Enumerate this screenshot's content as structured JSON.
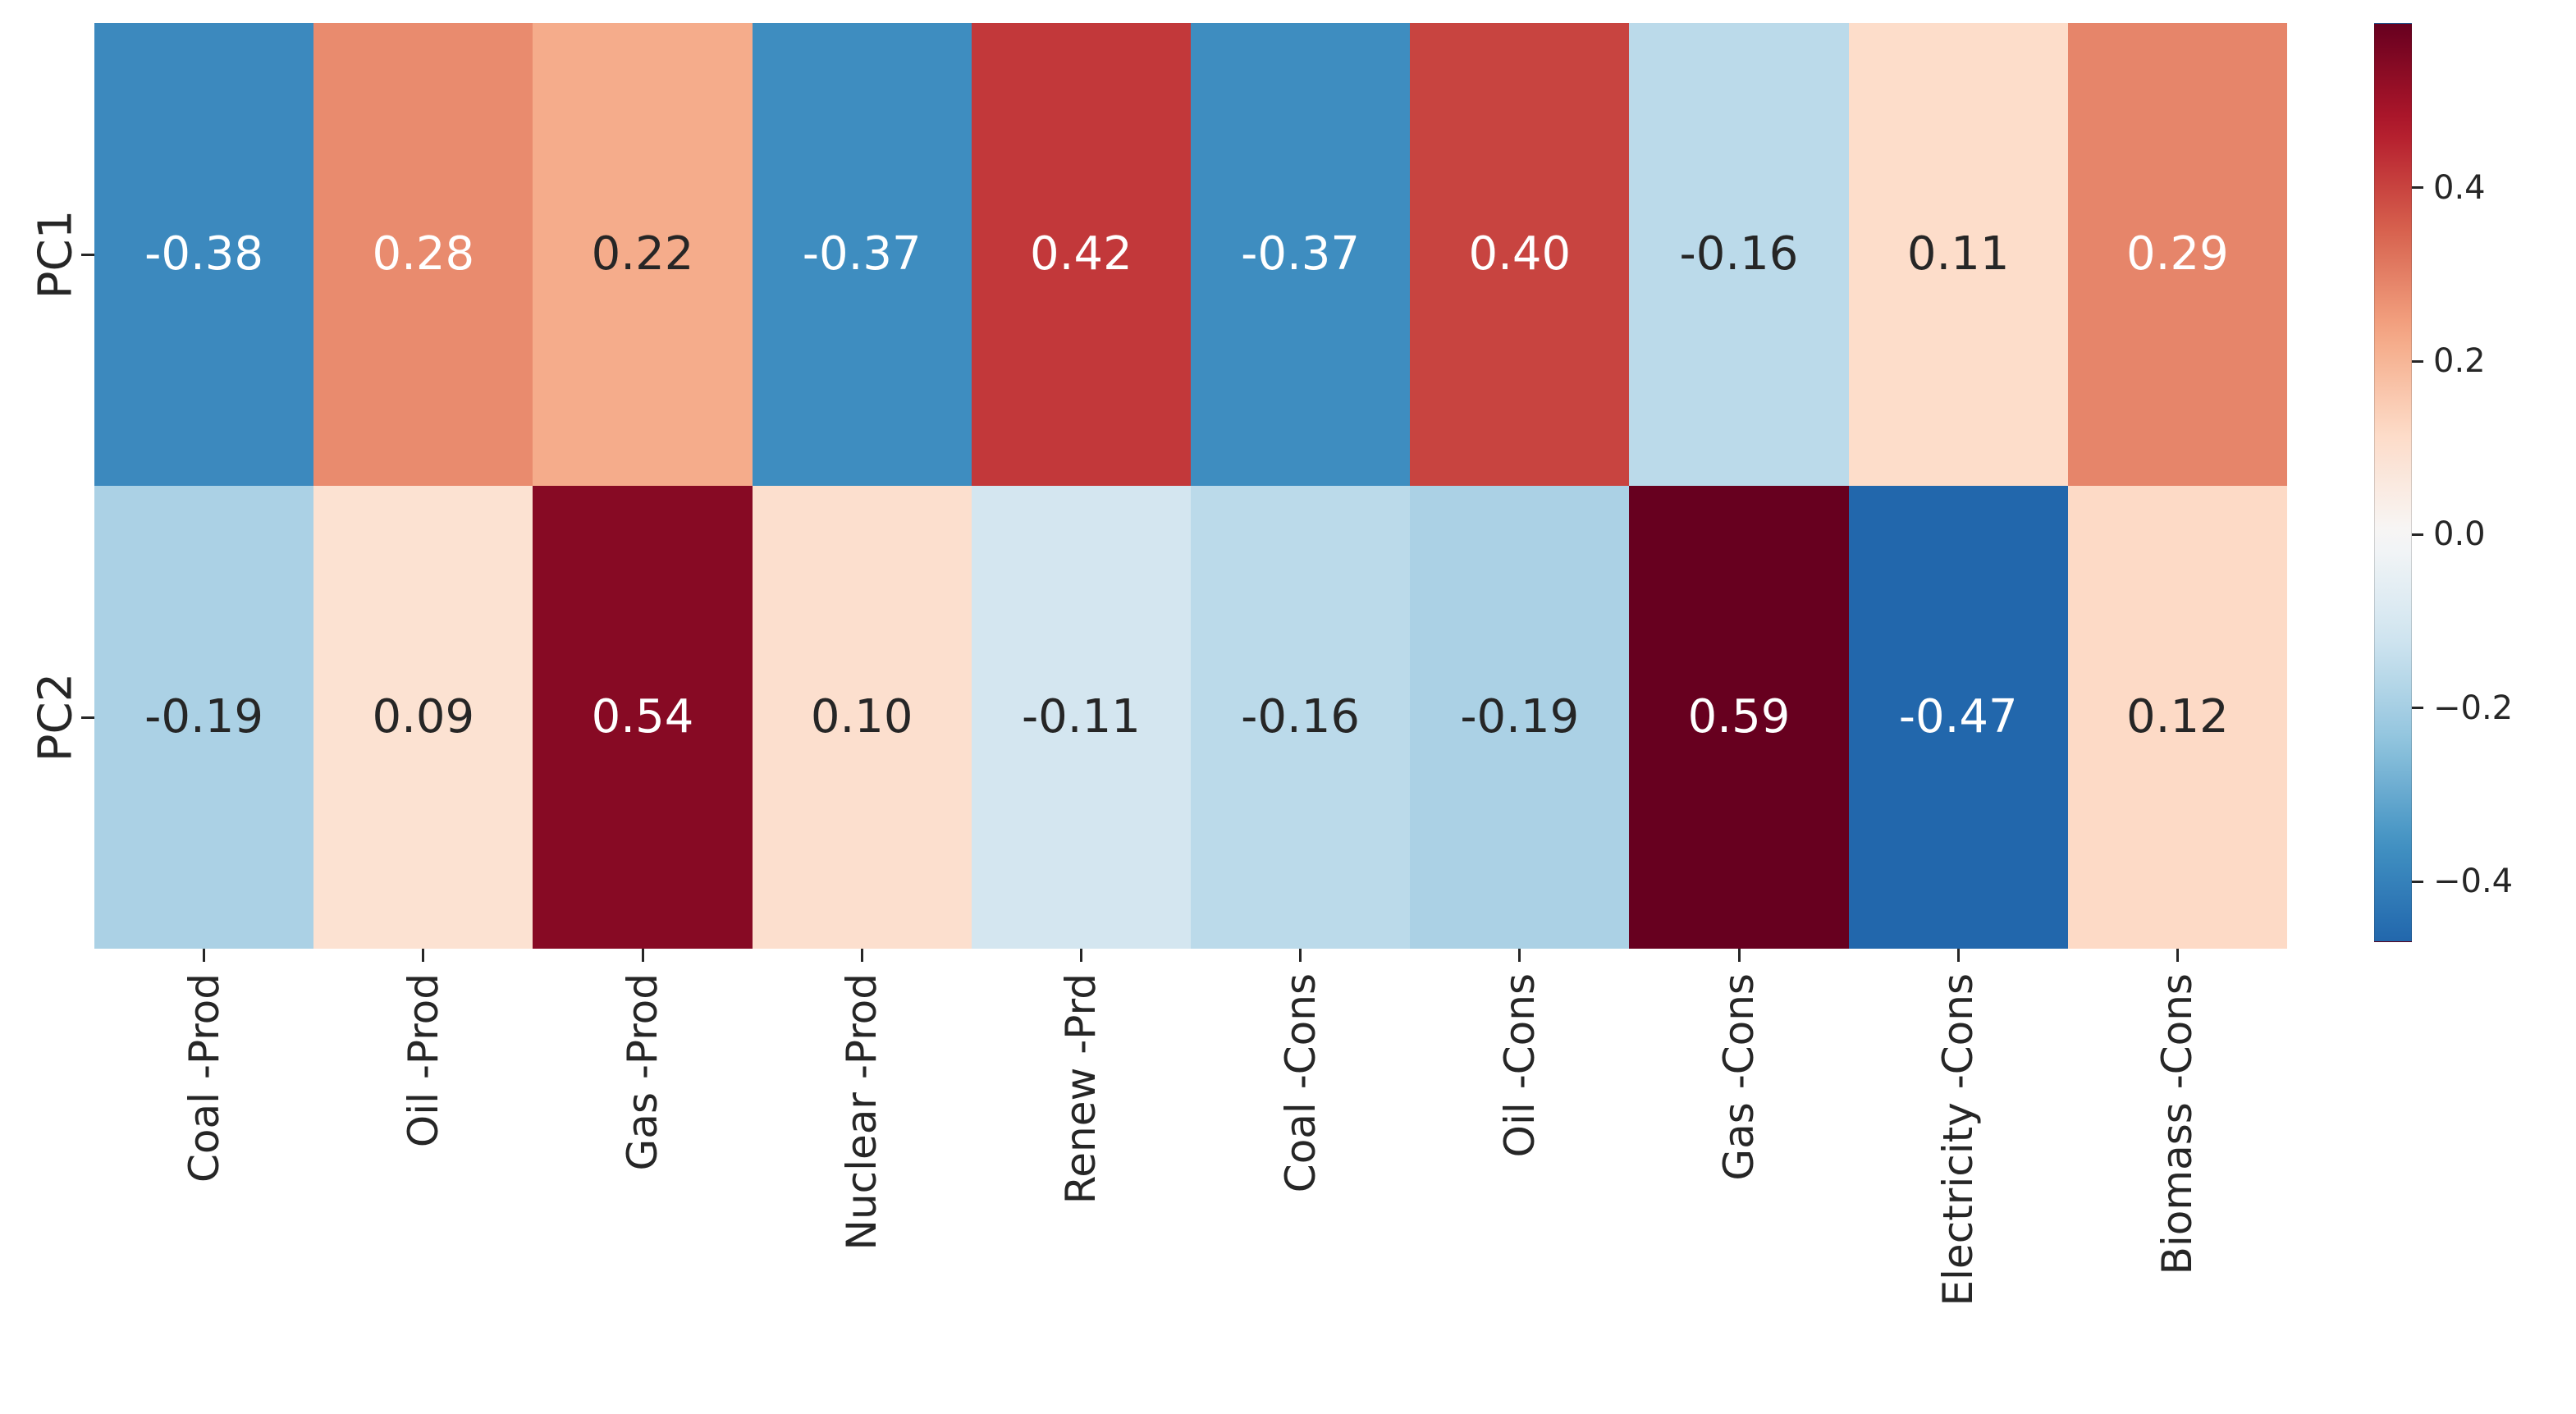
{
  "figure": {
    "background": "#ffffff"
  },
  "chart_data": {
    "type": "heatmap",
    "title": "",
    "xlabel": "",
    "ylabel": "",
    "rows": [
      "PC1",
      "PC2"
    ],
    "categories": [
      "Coal -Prod",
      "Oil -Prod",
      "Gas -Prod",
      "Nuclear -Prod",
      "Renew -Prd",
      "Coal -Cons",
      "Oil -Cons",
      "Gas -Cons",
      "Electricity -Cons",
      "Biomass -Cons"
    ],
    "series": [
      {
        "name": "PC1",
        "values": [
          -0.38,
          0.28,
          0.22,
          -0.37,
          0.42,
          -0.37,
          0.4,
          -0.16,
          0.11,
          0.29
        ]
      },
      {
        "name": "PC2",
        "values": [
          -0.19,
          0.09,
          0.54,
          0.1,
          -0.11,
          -0.16,
          -0.19,
          0.59,
          -0.47,
          0.12
        ]
      }
    ],
    "annotations": [
      [
        "-0.38",
        "0.28",
        "0.22",
        "-0.37",
        "0.42",
        "-0.37",
        "0.40",
        "-0.16",
        "0.11",
        "0.29"
      ],
      [
        "-0.19",
        "0.09",
        "0.54",
        "0.10",
        "-0.11",
        "-0.16",
        "-0.19",
        "0.59",
        "-0.47",
        "0.12"
      ]
    ],
    "value_format": ".2f",
    "grid": false,
    "colormap": {
      "name": "RdBu_r",
      "center": 0,
      "vmin": -0.47,
      "vmax": 0.59,
      "stops": [
        "#053061",
        "#2166ac",
        "#4393c3",
        "#92c5de",
        "#d1e5f0",
        "#f7f7f7",
        "#fddbc7",
        "#f4a582",
        "#d6604d",
        "#b2182b",
        "#67001f"
      ]
    },
    "colorbar": {
      "position": "right",
      "ticks": [
        {
          "label": "0.4",
          "value": 0.4
        },
        {
          "label": "0.2",
          "value": 0.2
        },
        {
          "label": "0.0",
          "value": 0.0
        },
        {
          "label": "−0.2",
          "value": -0.2
        },
        {
          "label": "−0.4",
          "value": -0.4
        }
      ]
    },
    "annotation_text_colors": {
      "light": "#ffffff",
      "dark": "#262626"
    },
    "axis_tick_color": "#262626"
  }
}
